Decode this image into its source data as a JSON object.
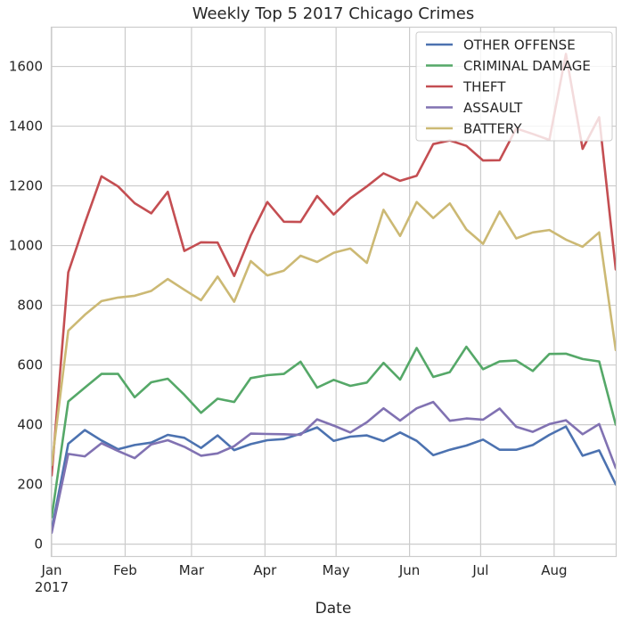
{
  "chart_data": {
    "type": "line",
    "title": "Weekly Top 5 2017 Chicago Crimes",
    "xlabel": "Date",
    "ylabel": "",
    "ylim": [
      -40,
      1730
    ],
    "xlim": [
      "2017-01-01",
      "2017-08-27"
    ],
    "yticks": [
      0,
      200,
      400,
      600,
      800,
      1000,
      1200,
      1400,
      1600
    ],
    "xticks": [
      {
        "date": "2017-01-01",
        "label": "Jan",
        "sublabel": "2017"
      },
      {
        "date": "2017-02-01",
        "label": "Feb",
        "sublabel": ""
      },
      {
        "date": "2017-03-01",
        "label": "Mar",
        "sublabel": ""
      },
      {
        "date": "2017-04-01",
        "label": "Apr",
        "sublabel": ""
      },
      {
        "date": "2017-05-01",
        "label": "May",
        "sublabel": ""
      },
      {
        "date": "2017-06-01",
        "label": "Jun",
        "sublabel": ""
      },
      {
        "date": "2017-07-01",
        "label": "Jul",
        "sublabel": ""
      },
      {
        "date": "2017-08-01",
        "label": "Aug",
        "sublabel": ""
      }
    ],
    "grid": true,
    "legend_position": "top-right",
    "x": [
      "2017-01-01",
      "2017-01-08",
      "2017-01-15",
      "2017-01-22",
      "2017-01-29",
      "2017-02-05",
      "2017-02-12",
      "2017-02-19",
      "2017-02-26",
      "2017-03-05",
      "2017-03-12",
      "2017-03-19",
      "2017-03-26",
      "2017-04-02",
      "2017-04-09",
      "2017-04-16",
      "2017-04-23",
      "2017-04-30",
      "2017-05-07",
      "2017-05-14",
      "2017-05-21",
      "2017-05-28",
      "2017-06-04",
      "2017-06-11",
      "2017-06-18",
      "2017-06-25",
      "2017-07-02",
      "2017-07-09",
      "2017-07-16",
      "2017-07-23",
      "2017-07-30",
      "2017-08-06",
      "2017-08-13",
      "2017-08-20",
      "2017-08-27"
    ],
    "series": [
      {
        "name": "OTHER OFFENSE",
        "color": "#4c72b0",
        "values": [
          48,
          336,
          382,
          347,
          318,
          332,
          340,
          366,
          356,
          322,
          364,
          315,
          335,
          348,
          352,
          370,
          391,
          346,
          360,
          364,
          345,
          374,
          346,
          298,
          316,
          330,
          350,
          316,
          316,
          332,
          366,
          394,
          296,
          314,
          200
        ]
      },
      {
        "name": "CRIMINAL DAMAGE",
        "color": "#55a868",
        "values": [
          90,
          478,
          524,
          570,
          570,
          492,
          542,
          554,
          500,
          440,
          487,
          476,
          556,
          566,
          570,
          611,
          524,
          550,
          530,
          541,
          607,
          551,
          657,
          560,
          576,
          661,
          586,
          612,
          615,
          580,
          637,
          638,
          620,
          612,
          400
        ]
      },
      {
        "name": "THEFT",
        "color": "#c44e52",
        "values": [
          230,
          910,
          1075,
          1232,
          1198,
          1142,
          1108,
          1180,
          982,
          1011,
          1010,
          898,
          1034,
          1146,
          1080,
          1079,
          1166,
          1104,
          1158,
          1198,
          1242,
          1217,
          1234,
          1340,
          1352,
          1334,
          1285,
          1286,
          1392,
          1374,
          1354,
          1642,
          1324,
          1430,
          920
        ]
      },
      {
        "name": "ASSAULT",
        "color": "#8172b2",
        "values": [
          38,
          302,
          294,
          338,
          312,
          288,
          334,
          348,
          326,
          296,
          304,
          328,
          370,
          369,
          368,
          366,
          418,
          397,
          374,
          408,
          455,
          414,
          455,
          476,
          413,
          421,
          417,
          454,
          393,
          376,
          402,
          415,
          368,
          402,
          255
        ]
      },
      {
        "name": "BATTERY",
        "color": "#ccb974",
        "values": [
          265,
          715,
          768,
          814,
          826,
          832,
          848,
          888,
          852,
          817,
          896,
          812,
          948,
          900,
          916,
          966,
          945,
          976,
          990,
          942,
          1120,
          1032,
          1146,
          1092,
          1141,
          1054,
          1006,
          1114,
          1024,
          1044,
          1052,
          1020,
          996,
          1044,
          650
        ]
      }
    ]
  }
}
